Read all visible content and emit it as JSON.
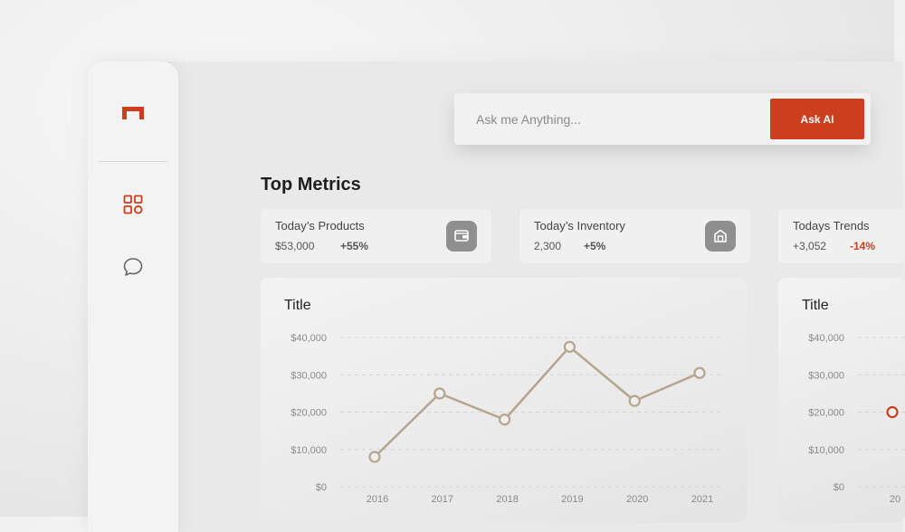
{
  "search": {
    "placeholder": "Ask me Anything...",
    "button_label": "Ask AI"
  },
  "sidebar": {
    "logo": "brand-logo",
    "items": [
      {
        "icon": "grid-icon",
        "active": true
      },
      {
        "icon": "chat-bubble-icon",
        "active": false
      }
    ]
  },
  "colors": {
    "accent": "#cc3e1e",
    "line": "#b5a48e",
    "negative": "#cc3e1e"
  },
  "main": {
    "section_title": "Top Metrics",
    "metrics": [
      {
        "title": "Today’s Products",
        "value": "$53,000",
        "change": "+55%",
        "icon": "wallet-icon"
      },
      {
        "title": "Today’s Inventory",
        "value": "2,300",
        "change": "+5%",
        "icon": "store-icon"
      },
      {
        "title": "Todays Trends",
        "value": "+3,052",
        "change": "-14%",
        "icon": ""
      }
    ],
    "charts": [
      {
        "title": "Title"
      },
      {
        "title": "Title"
      }
    ]
  },
  "chart_data": [
    {
      "type": "line",
      "title": "Title",
      "x": [
        "2016",
        "2017",
        "2018",
        "2019",
        "2020",
        "2021"
      ],
      "values": [
        8000,
        25000,
        18000,
        37500,
        23000,
        30500
      ],
      "y_ticks": [
        "$40,000",
        "$30,000",
        "$20,000",
        "$10,000",
        "$0"
      ],
      "ylim": [
        0,
        40000
      ],
      "grid": true
    },
    {
      "type": "line",
      "title": "Title",
      "x": [
        "20"
      ],
      "values": [
        20000
      ],
      "y_ticks": [
        "$40,000",
        "$30,000",
        "$20,000",
        "$10,000",
        "$0"
      ],
      "ylim": [
        0,
        40000
      ],
      "grid": true
    }
  ]
}
